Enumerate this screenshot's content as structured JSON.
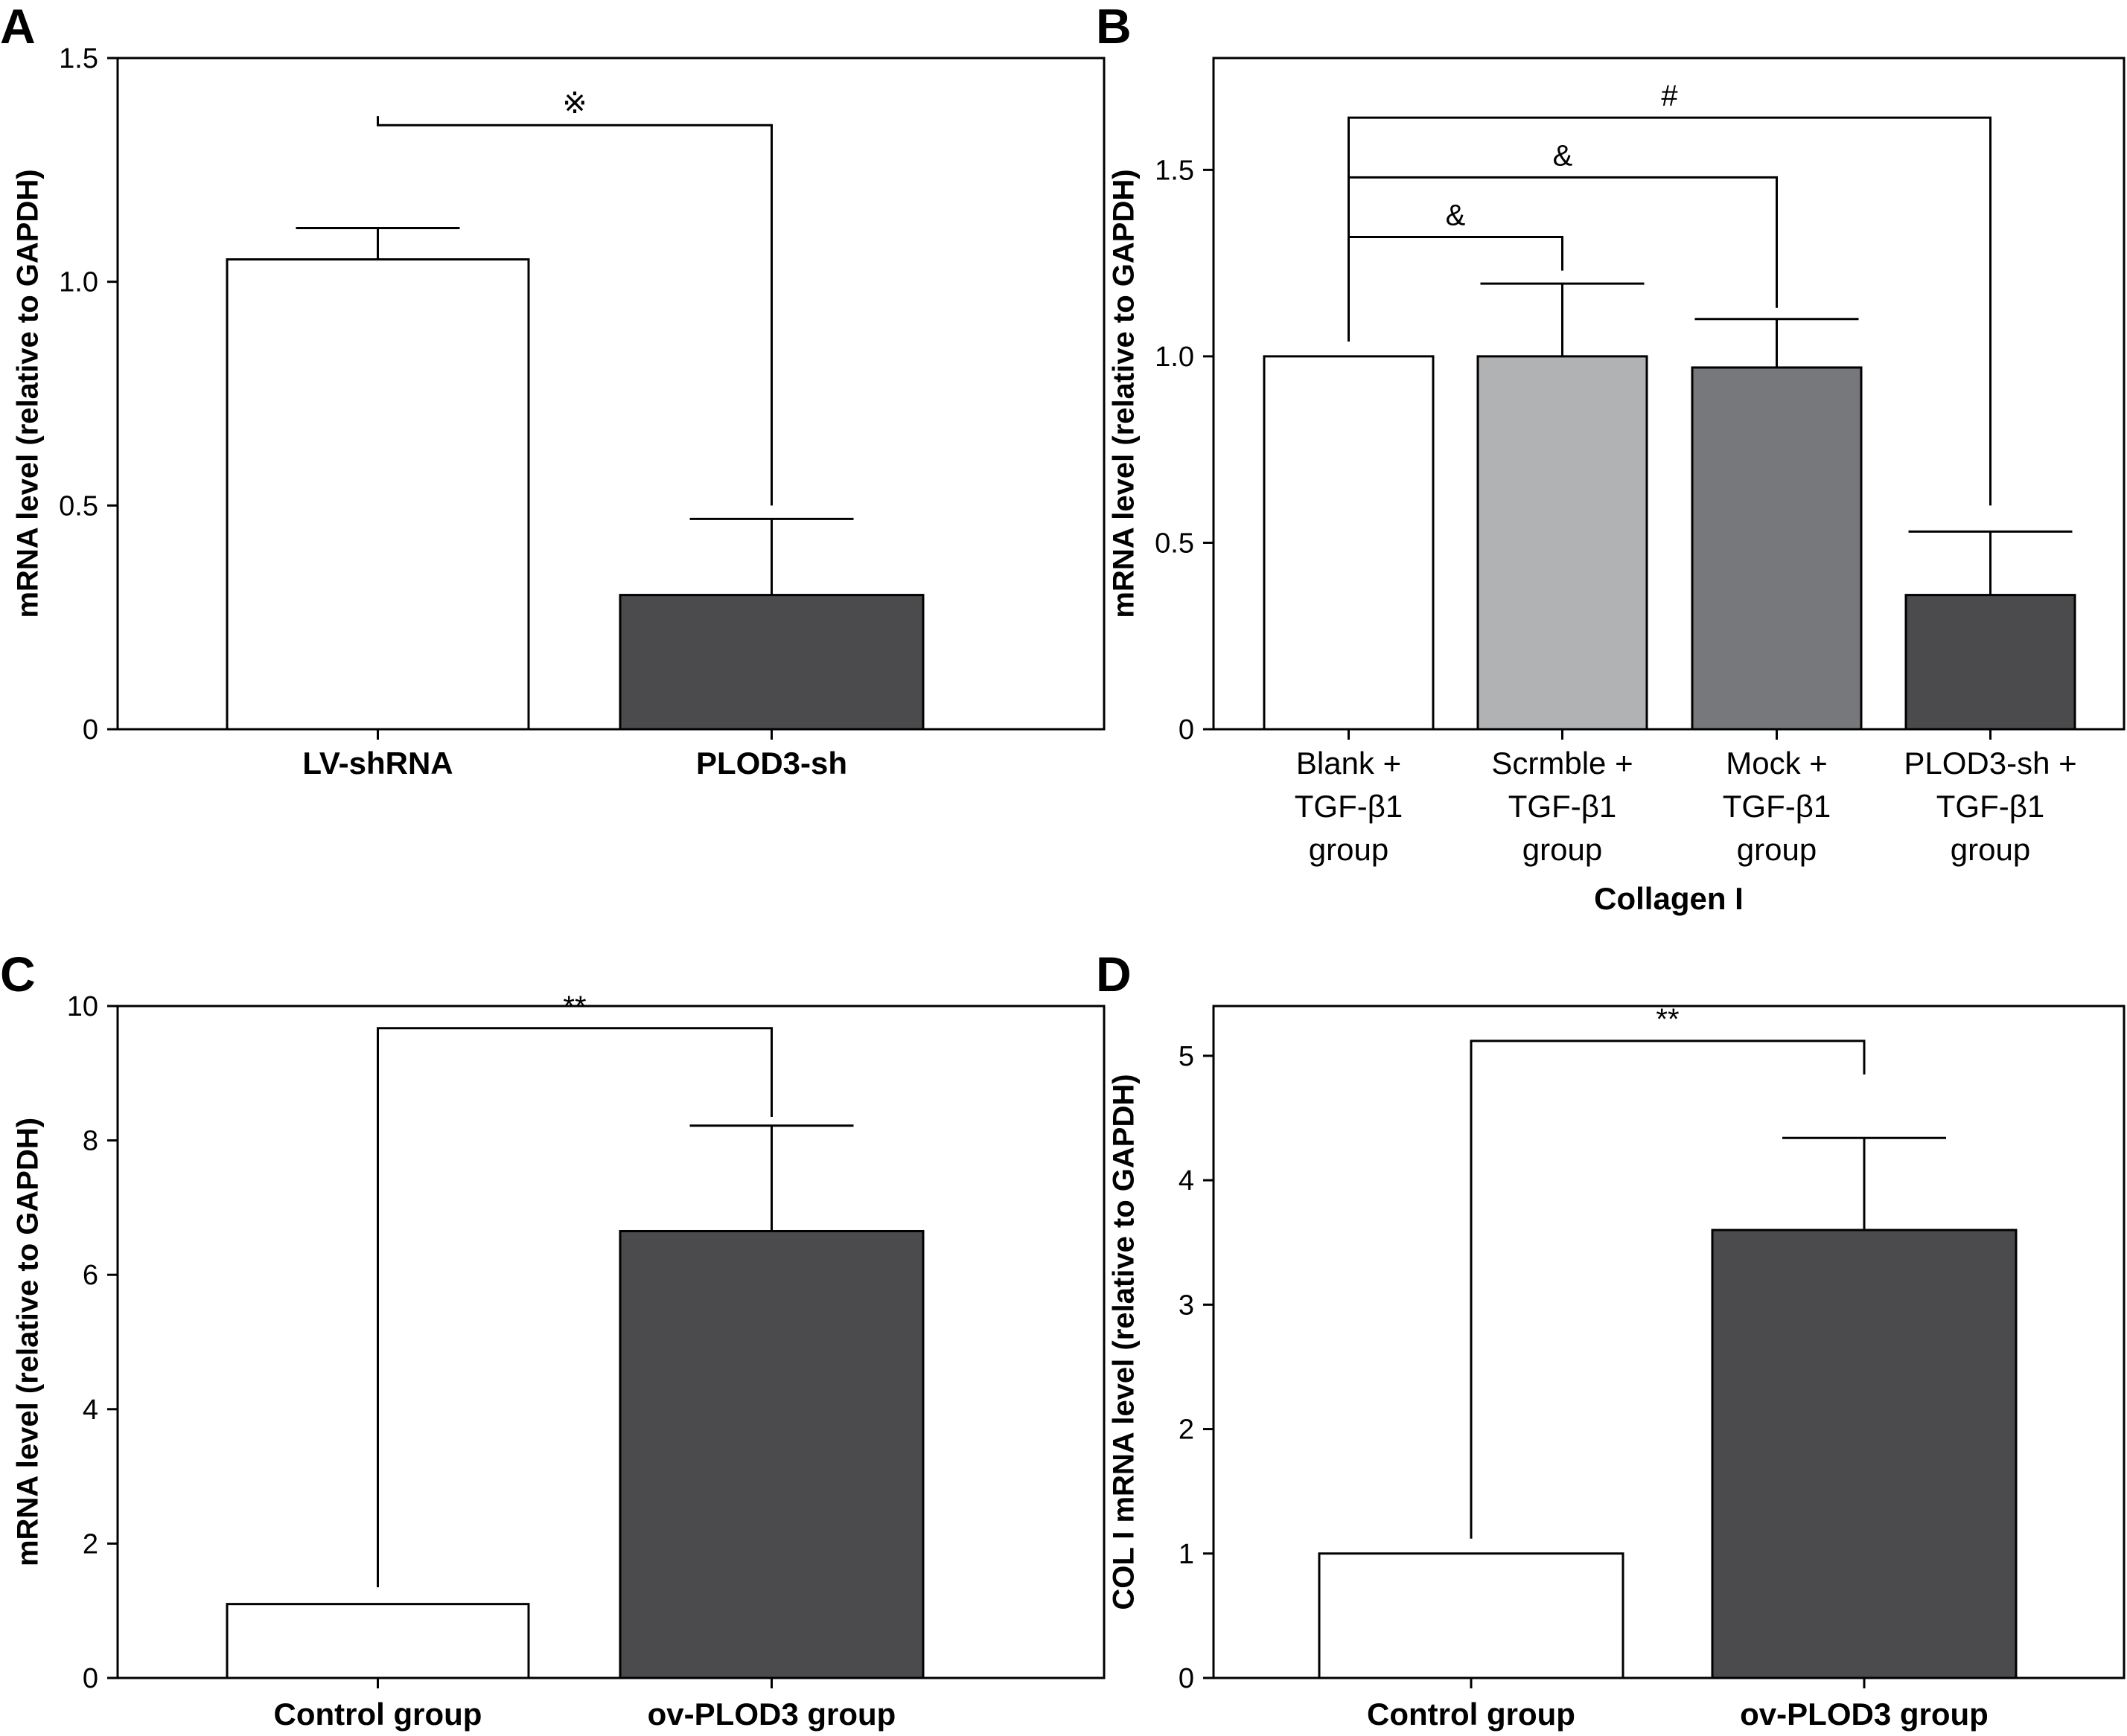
{
  "chart_data": [
    {
      "panel": "A",
      "type": "bar",
      "ylabel": "mRNA level (relative to GAPDH)",
      "xlabel": "",
      "ylim": [
        0,
        1.5
      ],
      "yticks": [
        0,
        0.5,
        1.0,
        1.5
      ],
      "ytick_labels": [
        "0",
        "0.5",
        "1.0",
        "1.5"
      ],
      "categories": [
        [
          "LV-shRNA"
        ],
        [
          "PLOD3-sh"
        ]
      ],
      "category_bold": true,
      "values": [
        1.05,
        0.3
      ],
      "errors": [
        0.07,
        0.17
      ],
      "colors": [
        "#ffffff",
        "#4b4b4d"
      ],
      "significance": [
        {
          "from": 0,
          "to": 1,
          "label": "※",
          "level": 1.35,
          "left_end": 1.37,
          "right_end": 0.5
        }
      ]
    },
    {
      "panel": "B",
      "type": "bar",
      "ylabel": "mRNA level (relative to GAPDH)",
      "xlabel": "Collagen I",
      "ylim": [
        0,
        1.8
      ],
      "yticks": [
        0,
        0.5,
        1.0,
        1.5
      ],
      "ytick_labels": [
        "0",
        "0.5",
        "1.0",
        "1.5"
      ],
      "categories": [
        [
          "Blank +",
          "TGF-β1",
          "group"
        ],
        [
          "Scrmble +",
          "TGF-β1",
          "group"
        ],
        [
          "Mock +",
          "TGF-β1",
          "group"
        ],
        [
          "PLOD3-sh +",
          "TGF-β1",
          "group"
        ]
      ],
      "category_bold": false,
      "values": [
        1.0,
        1.0,
        0.97,
        0.36
      ],
      "errors": [
        0.0,
        0.195,
        0.13,
        0.17
      ],
      "colors": [
        "#ffffff",
        "#b0b2b4",
        "#77787b",
        "#4b4b4d"
      ],
      "significance": [
        {
          "from": 0,
          "to": 1,
          "label": "&",
          "level": 1.32,
          "left_end": 1.04,
          "right_end": 1.23
        },
        {
          "from": 0,
          "to": 2,
          "label": "&",
          "level": 1.48,
          "left_end": 1.04,
          "right_end": 1.13
        },
        {
          "from": 0,
          "to": 3,
          "label": "#",
          "level": 1.64,
          "left_end": 1.04,
          "right_end": 0.6
        }
      ]
    },
    {
      "panel": "C",
      "type": "bar",
      "ylabel": "mRNA level (relative to GAPDH)",
      "xlabel": "",
      "ylim": [
        0,
        10
      ],
      "yticks": [
        0,
        2,
        4,
        6,
        8,
        10
      ],
      "ytick_labels": [
        "0",
        "2",
        "4",
        "6",
        "8",
        "10"
      ],
      "categories": [
        [
          "Control group"
        ],
        [
          "ov-PLOD3 group"
        ]
      ],
      "category_bold": true,
      "values": [
        1.1,
        6.65
      ],
      "errors": [
        0.0,
        1.57
      ],
      "colors": [
        "#ffffff",
        "#4b4b4d"
      ],
      "significance": [
        {
          "from": 0,
          "to": 1,
          "label": "**",
          "level": 9.67,
          "left_end": 1.35,
          "right_end": 8.35
        }
      ]
    },
    {
      "panel": "D",
      "type": "bar",
      "ylabel": "COL I mRNA level (relative to GAPDH)",
      "xlabel": "",
      "ylim": [
        0,
        5.4
      ],
      "yticks": [
        0,
        1,
        2,
        3,
        4,
        5
      ],
      "ytick_labels": [
        "0",
        "1",
        "2",
        "3",
        "4",
        "5"
      ],
      "categories": [
        [
          "Control group"
        ],
        [
          "ov-PLOD3 group"
        ]
      ],
      "category_bold": true,
      "values": [
        1.0,
        3.6
      ],
      "errors": [
        0.0,
        0.74
      ],
      "colors": [
        "#ffffff",
        "#4b4b4d"
      ],
      "significance": [
        {
          "from": 0,
          "to": 1,
          "label": "**",
          "level": 5.12,
          "left_end": 1.12,
          "right_end": 4.85
        }
      ]
    }
  ]
}
